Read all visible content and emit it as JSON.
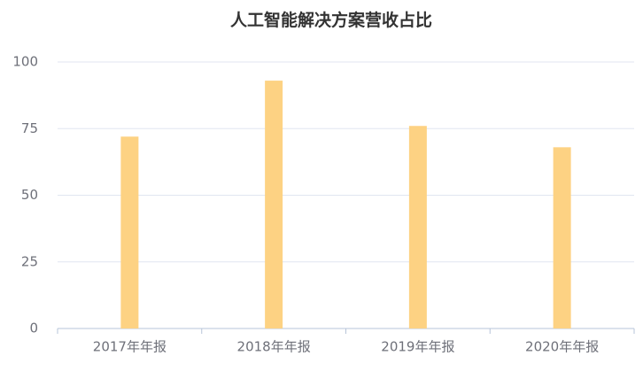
{
  "chart_data": {
    "type": "bar",
    "title": "人工智能解决方案营收占比",
    "categories": [
      "2017年年报",
      "2018年年报",
      "2019年年报",
      "2020年年报"
    ],
    "values": [
      72,
      93,
      76,
      68
    ],
    "color": "#fdd283",
    "ylim": [
      0,
      100
    ],
    "yticks": [
      0,
      25,
      50,
      75,
      100
    ],
    "grid": true
  }
}
